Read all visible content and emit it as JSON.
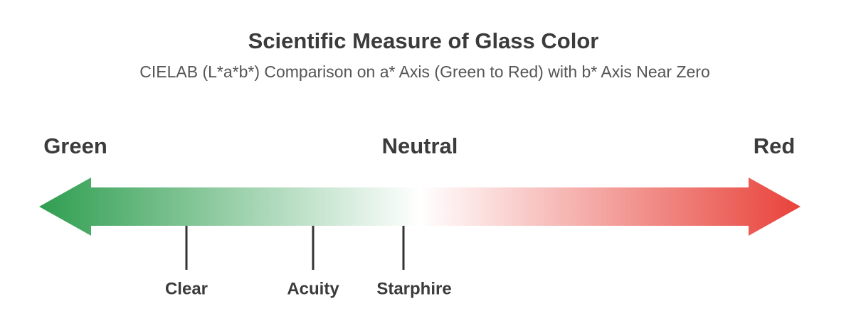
{
  "header": {
    "title": "Scientific Measure of Glass Color",
    "subtitle": "CIELAB (L*a*b*) Comparison on a* Axis (Green to Red) with b* Axis Near Zero"
  },
  "axis_labels": [
    "Green",
    "Neutral",
    "Red"
  ],
  "markers": [
    {
      "label": "Clear"
    },
    {
      "label": "Acuity"
    },
    {
      "label": "Starphire"
    }
  ]
}
